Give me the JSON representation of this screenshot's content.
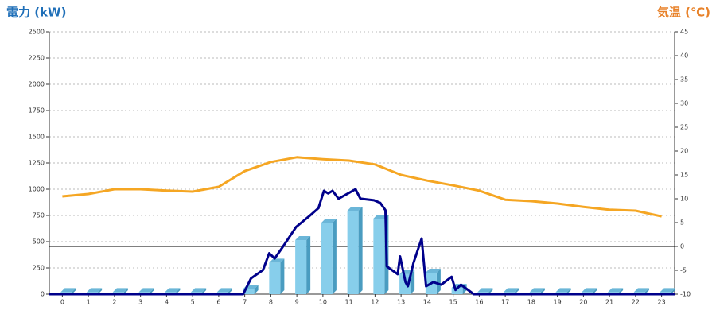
{
  "chart_data": {
    "type": "bar",
    "ylabel": "電力 (kW)",
    "y2label": "気温 (℃)",
    "xlim": [
      -0.5,
      23.5
    ],
    "xticks": [
      0,
      1,
      2,
      3,
      4,
      5,
      6,
      7,
      8,
      9,
      10,
      11,
      12,
      13,
      14,
      15,
      16,
      17,
      18,
      19,
      20,
      21,
      22,
      23
    ],
    "ylim": [
      0,
      2500
    ],
    "yticks": [
      0,
      250,
      500,
      750,
      1000,
      1250,
      1500,
      1750,
      2000,
      2250,
      2500
    ],
    "y2lim": [
      -10,
      45
    ],
    "y2ticks": [
      -10,
      -5,
      0,
      5,
      10,
      15,
      20,
      25,
      30,
      35,
      40,
      45
    ],
    "grid": true,
    "zero_line_y2": 0,
    "series": [
      {
        "type": "bar",
        "color": "#87ceeb",
        "x": [
          0,
          1,
          2,
          3,
          4,
          5,
          6,
          7,
          8,
          9,
          10,
          11,
          12,
          13,
          14,
          15,
          16,
          17,
          18,
          19,
          20,
          21,
          22,
          23
        ],
        "values": [
          20,
          20,
          20,
          20,
          20,
          20,
          20,
          50,
          300,
          515,
          680,
          795,
          720,
          190,
          205,
          60,
          20,
          20,
          20,
          20,
          20,
          20,
          20,
          20
        ]
      },
      {
        "type": "line",
        "color": "#00008b",
        "x": [
          -0.5,
          6.94,
          7.24,
          7.7,
          7.94,
          8.15,
          8.46,
          8.97,
          9.46,
          9.83,
          10.04,
          10.2,
          10.37,
          10.6,
          11.04,
          11.25,
          11.44,
          11.96,
          12.2,
          12.4,
          12.45,
          12.87,
          12.96,
          13.17,
          13.26,
          13.48,
          13.79,
          13.96,
          14.24,
          14.54,
          14.94,
          15.09,
          15.3,
          15.79,
          23.5
        ],
        "values": [
          0,
          0,
          150,
          230,
          390,
          340,
          450,
          640,
          740,
          820,
          985,
          960,
          985,
          910,
          970,
          1000,
          910,
          895,
          870,
          800,
          265,
          190,
          360,
          115,
          75,
          300,
          530,
          75,
          115,
          90,
          165,
          40,
          90,
          0,
          0
        ]
      },
      {
        "type": "line",
        "color": "#f5a623",
        "axis": "y2",
        "x": [
          0,
          1,
          2,
          3,
          4,
          5,
          6,
          7,
          8,
          9,
          10,
          11,
          12,
          13,
          14,
          15,
          16,
          17,
          18,
          19,
          20,
          21,
          22,
          23
        ],
        "values": [
          10.5,
          11,
          12,
          12,
          11.7,
          11.5,
          12.5,
          15.8,
          17.7,
          18.7,
          18.3,
          18,
          17.2,
          15,
          13.8,
          12.8,
          11.7,
          9.8,
          9.5,
          9,
          8.3,
          7.7,
          7.5,
          6.3
        ]
      }
    ]
  }
}
